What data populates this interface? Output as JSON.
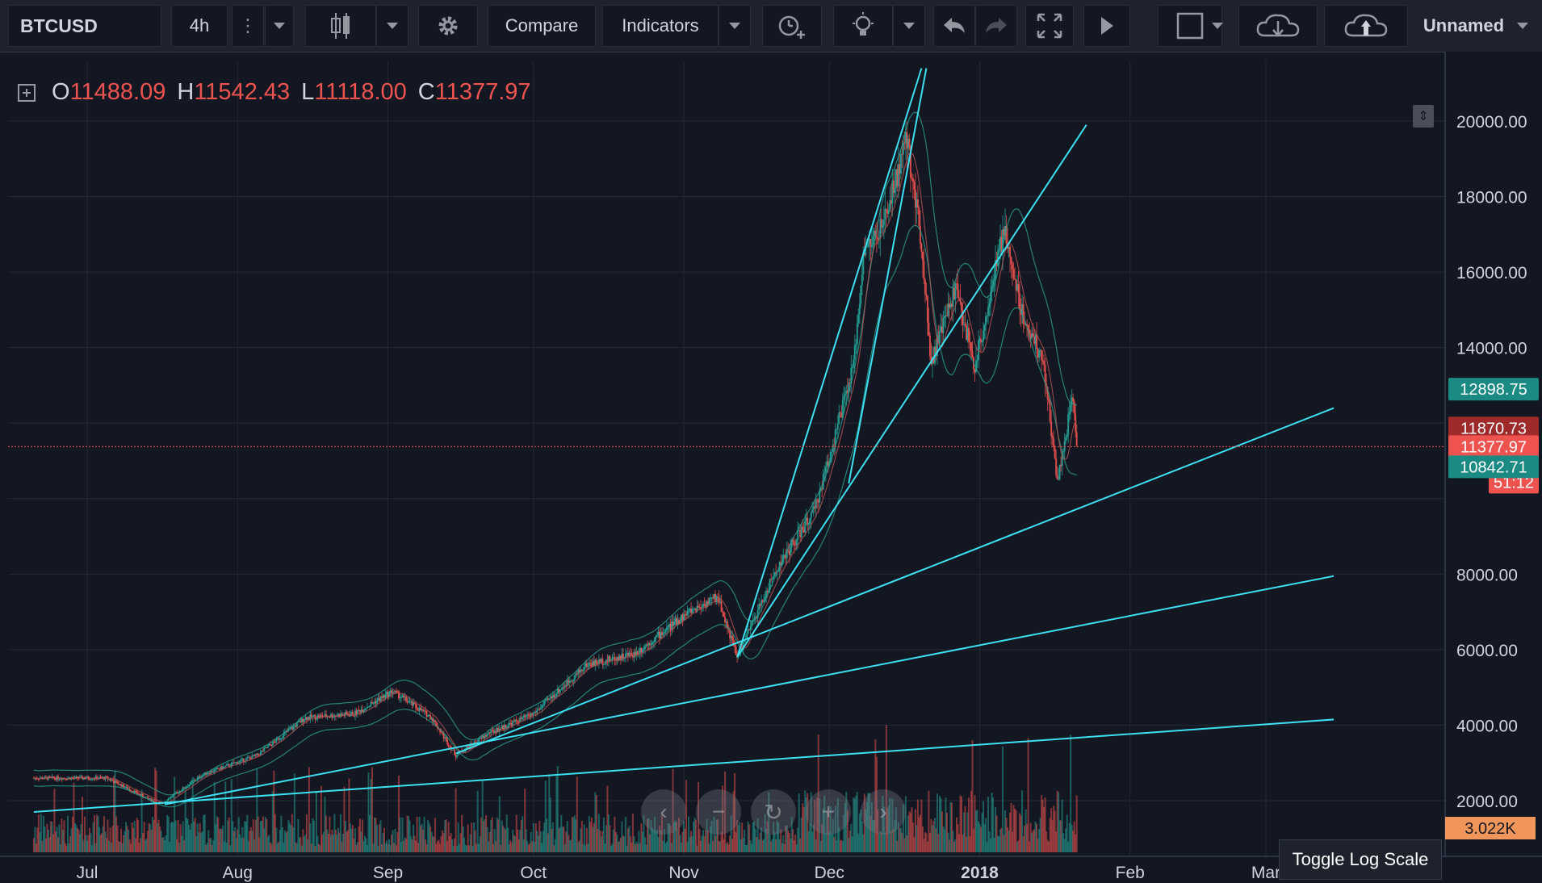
{
  "toolbar": {
    "symbol": "BTCUSD",
    "interval": "4h",
    "compare_label": "Compare",
    "indicators_label": "Indicators",
    "layout_name": "Unnamed"
  },
  "legend": {
    "o_label": "O",
    "o_value": "11488.09",
    "h_label": "H",
    "h_value": "11542.43",
    "l_label": "L",
    "l_value": "11118.00",
    "c_label": "C",
    "c_value": "11377.97"
  },
  "toggle_log_label": "Toggle Log Scale",
  "colors": {
    "background": "#131722",
    "grid": "#242836",
    "up": "#26a69a",
    "down": "#ef5350",
    "trendline": "#3de0f0",
    "text": "#d1d4dc"
  },
  "chart_data": {
    "type": "candlestick",
    "title": "BTCUSD 4h",
    "x_ticks": [
      "Jul",
      "Aug",
      "Sep",
      "Oct",
      "Nov",
      "Dec",
      "2018",
      "Feb",
      "Mar"
    ],
    "y_ticks": [
      "20000.00",
      "18000.00",
      "16000.00",
      "14000.00",
      "8000.00",
      "6000.00",
      "4000.00",
      "2000.00"
    ],
    "ylim": [
      0,
      21500
    ],
    "price_series": [
      {
        "date": "2017-06-20",
        "price": 2600
      },
      {
        "date": "2017-07-05",
        "price": 2600
      },
      {
        "date": "2017-07-16",
        "price": 1900
      },
      {
        "date": "2017-07-25",
        "price": 2700
      },
      {
        "date": "2017-08-05",
        "price": 3200
      },
      {
        "date": "2017-08-15",
        "price": 4200
      },
      {
        "date": "2017-08-25",
        "price": 4300
      },
      {
        "date": "2017-09-02",
        "price": 4900
      },
      {
        "date": "2017-09-10",
        "price": 4200
      },
      {
        "date": "2017-09-15",
        "price": 3200
      },
      {
        "date": "2017-09-22",
        "price": 3800
      },
      {
        "date": "2017-10-01",
        "price": 4300
      },
      {
        "date": "2017-10-12",
        "price": 5600
      },
      {
        "date": "2017-10-22",
        "price": 5900
      },
      {
        "date": "2017-11-02",
        "price": 7000
      },
      {
        "date": "2017-11-08",
        "price": 7400
      },
      {
        "date": "2017-11-12",
        "price": 5800
      },
      {
        "date": "2017-11-20",
        "price": 8100
      },
      {
        "date": "2017-11-28",
        "price": 9700
      },
      {
        "date": "2017-12-06",
        "price": 13500
      },
      {
        "date": "2017-12-08",
        "price": 16500
      },
      {
        "date": "2017-12-12",
        "price": 17200
      },
      {
        "date": "2017-12-17",
        "price": 19500
      },
      {
        "date": "2017-12-20",
        "price": 16800
      },
      {
        "date": "2017-12-22",
        "price": 13600
      },
      {
        "date": "2017-12-27",
        "price": 15600
      },
      {
        "date": "2017-12-31",
        "price": 13500
      },
      {
        "date": "2018-01-06",
        "price": 17100
      },
      {
        "date": "2018-01-10",
        "price": 14800
      },
      {
        "date": "2018-01-14",
        "price": 13700
      },
      {
        "date": "2018-01-17",
        "price": 10500
      },
      {
        "date": "2018-01-19",
        "price": 11800
      },
      {
        "date": "2018-01-20",
        "price": 12800
      },
      {
        "date": "2018-01-21",
        "price": 11378
      }
    ],
    "trend_lines": [
      {
        "name": "trendline-1",
        "from": {
          "date": "2017-06-20",
          "price": 1700
        },
        "to": {
          "date": "2018-03-15",
          "price": 4150
        }
      },
      {
        "name": "trendline-2",
        "from": {
          "date": "2017-07-17",
          "price": 1900
        },
        "to": {
          "date": "2018-03-15",
          "price": 7950
        }
      },
      {
        "name": "trendline-3",
        "from": {
          "date": "2017-09-15",
          "price": 3250
        },
        "to": {
          "date": "2018-03-15",
          "price": 12400
        }
      },
      {
        "name": "trendline-4",
        "from": {
          "date": "2017-11-12",
          "price": 5800
        },
        "to": {
          "date": "2018-01-23",
          "price": 19900
        }
      },
      {
        "name": "trendline-5",
        "from": {
          "date": "2017-11-12",
          "price": 5800
        },
        "to": {
          "date": "2017-12-20",
          "price": 21400
        }
      },
      {
        "name": "trendline-6",
        "from": {
          "date": "2017-12-05",
          "price": 10400
        },
        "to": {
          "date": "2017-12-21",
          "price": 21400
        }
      }
    ],
    "price_labels": [
      {
        "label": "12898.75",
        "price": 12898.75,
        "color": "#1b8a83"
      },
      {
        "label": "11870.73",
        "price": 11870.73,
        "color": "#9e2a2a"
      },
      {
        "label": "11377.97",
        "price": 11377.97,
        "color": "#ef5350"
      },
      {
        "label": "51:12",
        "price": 10400,
        "color": "#ef5350"
      },
      {
        "label": "10842.71",
        "price": 10842.71,
        "color": "#1b8a83"
      }
    ],
    "volume_label": "3.022K"
  }
}
